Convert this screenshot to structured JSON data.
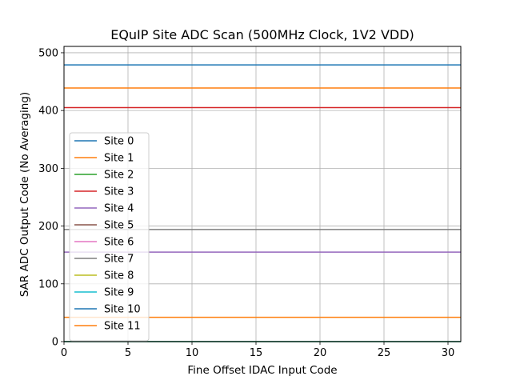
{
  "chart_data": {
    "type": "line",
    "title": "EQuIP Site ADC Scan (500MHz Clock, 1V2 VDD)",
    "xlabel": "Fine Offset IDAC Input Code",
    "ylabel": "SAR ADC Output Code (No Averaging)",
    "xlim": [
      0,
      31
    ],
    "ylim": [
      0,
      511
    ],
    "xticks": [
      0,
      5,
      10,
      15,
      20,
      25,
      30
    ],
    "yticks": [
      0,
      100,
      200,
      300,
      400,
      500
    ],
    "grid": true,
    "legend_position": "center-left",
    "x": [
      0,
      31
    ],
    "series": [
      {
        "name": "Site 0",
        "color": "#1f77b4",
        "values": [
          0,
          0
        ]
      },
      {
        "name": "Site 1",
        "color": "#ff7f0e",
        "values": [
          0,
          0
        ]
      },
      {
        "name": "Site 2",
        "color": "#2ca02c",
        "values": [
          0,
          0
        ]
      },
      {
        "name": "Site 3",
        "color": "#d62728",
        "values": [
          405,
          405
        ]
      },
      {
        "name": "Site 4",
        "color": "#9467bd",
        "values": [
          155,
          155
        ]
      },
      {
        "name": "Site 5",
        "color": "#8c564b",
        "values": [
          0,
          0
        ]
      },
      {
        "name": "Site 6",
        "color": "#e377c2",
        "values": [
          0,
          0
        ]
      },
      {
        "name": "Site 7",
        "color": "#7f7f7f",
        "values": [
          194,
          194
        ]
      },
      {
        "name": "Site 8",
        "color": "#bcbd22",
        "values": [
          0,
          0
        ]
      },
      {
        "name": "Site 9",
        "color": "#17becf",
        "values": [
          0,
          0
        ]
      },
      {
        "name": "Site 10",
        "color": "#1f77b4",
        "values": [
          479,
          479
        ]
      },
      {
        "name": "Site 11",
        "color": "#ff7f0e",
        "values": [
          42,
          42
        ]
      },
      {
        "color": "#ff7f0e",
        "values": [
          439,
          439
        ]
      }
    ]
  }
}
